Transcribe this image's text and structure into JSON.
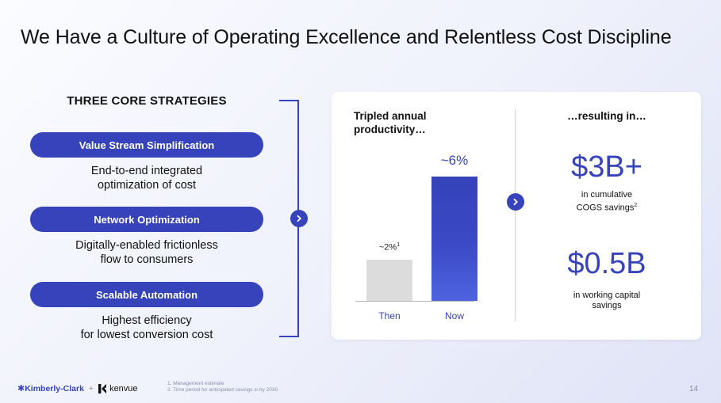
{
  "slide": {
    "title": "We Have a Culture of Operating Excellence and Relentless Cost Discipline",
    "page_number": "14"
  },
  "strategies": {
    "heading": "THREE CORE STRATEGIES",
    "items": [
      {
        "label": "Value Stream Simplification",
        "desc_line1": "End-to-end integrated",
        "desc_line2": "optimization of cost"
      },
      {
        "label": "Network Optimization",
        "desc_line1": "Digitally-enabled frictionless",
        "desc_line2": "flow to consumers"
      },
      {
        "label": "Scalable Automation",
        "desc_line1": "Highest efficiency",
        "desc_line2": "for lowest conversion cost"
      }
    ]
  },
  "productivity": {
    "heading_line1": "Tripled annual",
    "heading_line2": "productivity…"
  },
  "chart_data": {
    "type": "bar",
    "categories": [
      "Then",
      "Now"
    ],
    "values": [
      2,
      6
    ],
    "data_labels": [
      "~2%",
      "~6%"
    ],
    "label_sup": [
      "1",
      ""
    ],
    "series_colors": [
      "#dcdcdc",
      "#3643ba"
    ],
    "ylim": [
      0,
      6.5
    ],
    "title": "",
    "xlabel": "",
    "ylabel": ""
  },
  "results": {
    "heading": "…resulting in…",
    "metric1": {
      "value": "$3B+",
      "caption_line1": "in cumulative",
      "caption_line2": "COGS savings",
      "sup": "2"
    },
    "metric2": {
      "value": "$0.5B",
      "caption_line1": "in working capital",
      "caption_line2": "savings"
    }
  },
  "footer": {
    "brand1": "Kimberly-Clark",
    "plus": "+",
    "brand2": "kenvue",
    "footnote1": "1.  Management estimate",
    "footnote2": "2.  Time period for anticipated savings is by 2030"
  },
  "colors": {
    "accent": "#3643ba",
    "bar_then": "#dcdcdc"
  },
  "icons": {
    "arrow": "chevron-right-icon"
  }
}
